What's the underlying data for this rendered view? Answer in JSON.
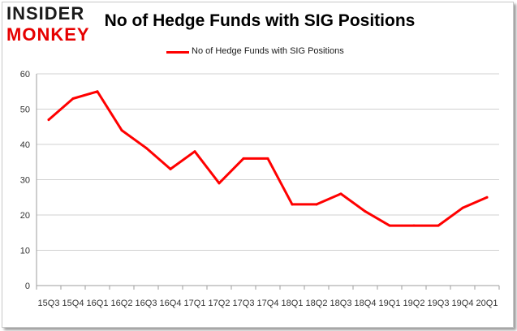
{
  "brand": {
    "line1": "INSIDER",
    "line2": "MONKEY"
  },
  "chart_data": {
    "type": "line",
    "title": "No of Hedge Funds with SIG Positions",
    "xlabel": "",
    "ylabel": "",
    "categories": [
      "15Q3",
      "15Q4",
      "16Q1",
      "16Q2",
      "16Q3",
      "16Q4",
      "17Q1",
      "17Q2",
      "17Q3",
      "17Q4",
      "18Q1",
      "18Q2",
      "18Q3",
      "18Q4",
      "19Q1",
      "19Q2",
      "19Q3",
      "19Q4",
      "20Q1"
    ],
    "series": [
      {
        "name": "No of Hedge Funds with SIG Positions",
        "values": [
          47,
          53,
          55,
          44,
          39,
          33,
          38,
          29,
          36,
          36,
          23,
          23,
          26,
          21,
          17,
          17,
          17,
          22,
          25
        ]
      }
    ],
    "ylim": [
      0,
      60
    ],
    "yticks": [
      "0",
      "10",
      "20",
      "30",
      "40",
      "50",
      "60"
    ],
    "grid": true,
    "legend_position": "top-center",
    "line_color": "#ff0000",
    "grid_color": "#d0d0d0"
  }
}
